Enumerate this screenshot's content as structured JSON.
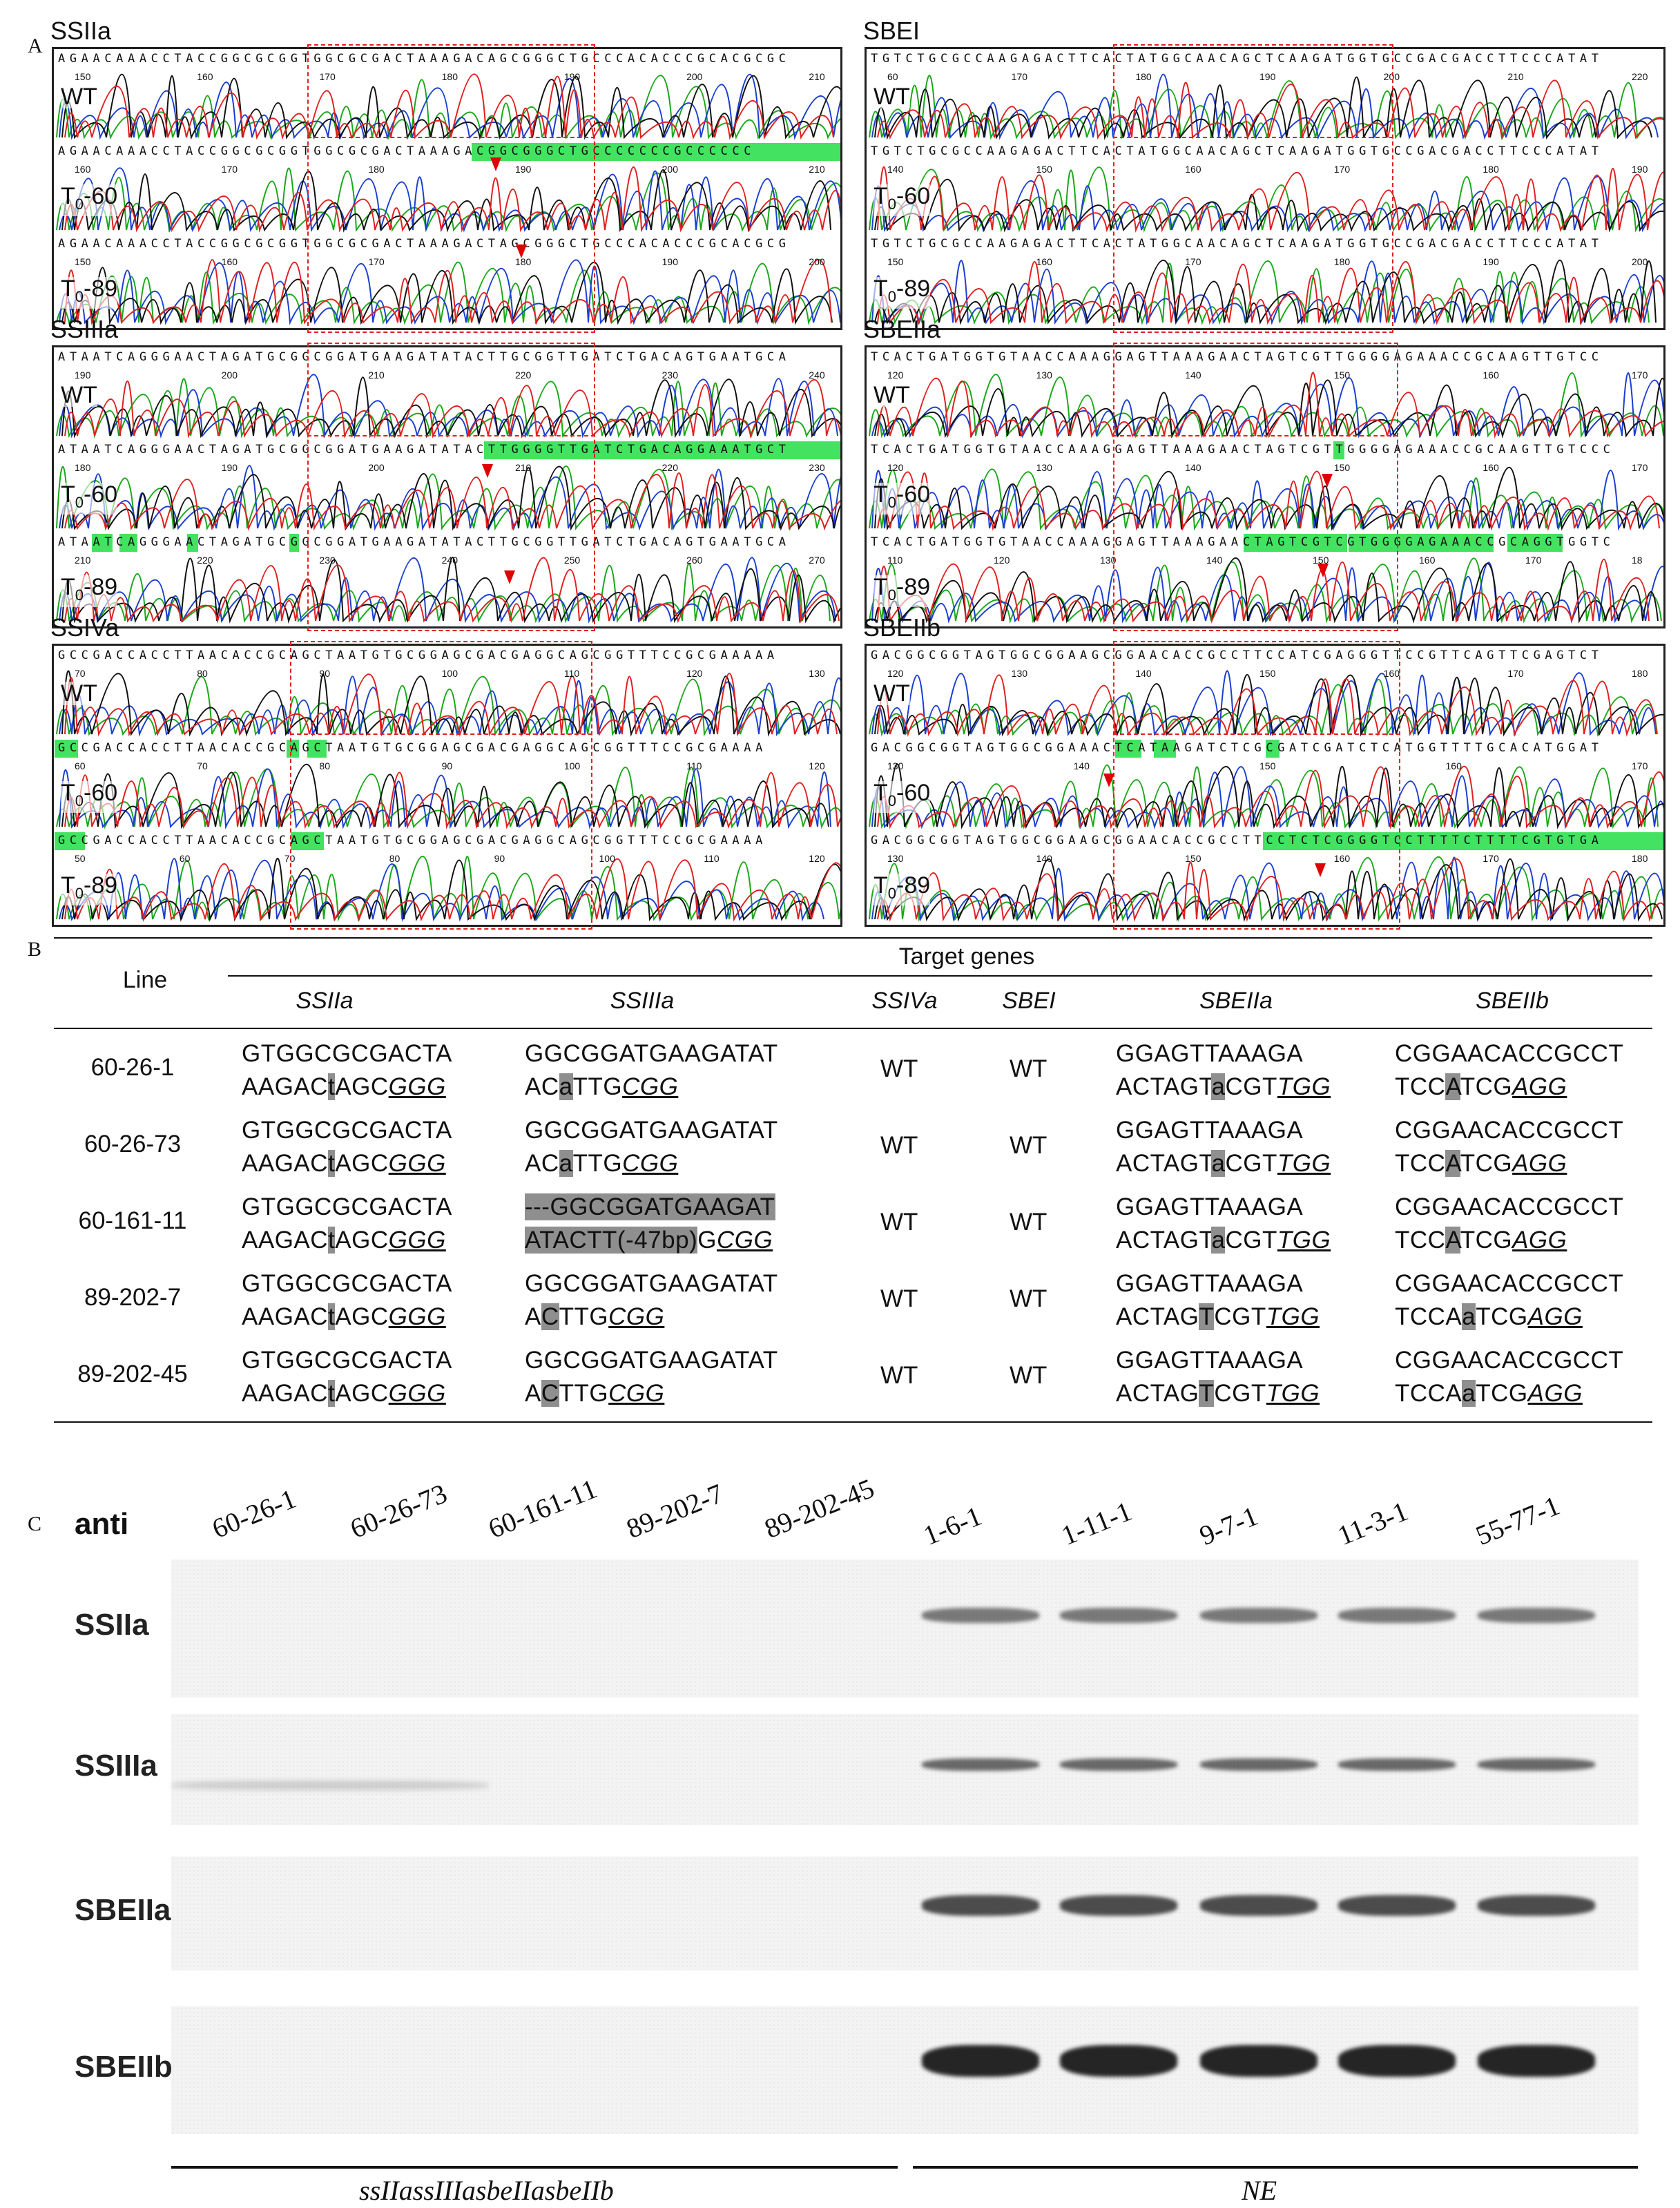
{
  "panel_labels": {
    "a": "A",
    "b": "B",
    "c": "C"
  },
  "panelA": {
    "track_labels": {
      "wt": "WT",
      "t60": "T0-60",
      "t89": "T0-89"
    },
    "genes": [
      {
        "name": "SSIIa",
        "rows": [
          {
            "seq": "AGAACAAACCTACCGGCGCGGTGGCGCGACTAAAGACAGCGGGCTGCCCACACCCGCACGCGC",
            "ticks": [
              "150",
              "160",
              "170",
              "180",
              "190",
              "200",
              "210"
            ]
          },
          {
            "seq": "AGAACAAACCTACCGGCGCGGTGGCGCGACTAAAGACGGCGGGCTGCCCCCCCGCCCCCC",
            "ticks": [
              "160",
              "170",
              "180",
              "190",
              "200",
              "210"
            ]
          },
          {
            "seq": "AGAACAAACCTACCGGCGCGGTGGCGCGACTAAAGACTAGCGGGCTGCCCACACCCGCACGCG",
            "ticks": [
              "150",
              "160",
              "170",
              "180",
              "190",
              "200"
            ]
          }
        ]
      },
      {
        "name": "SBEI",
        "rows": [
          {
            "seq": "TGTCTGCGCCAAGAGACTTCACTATGGCAACAGCTCAAGATGGTGCCGACGACCTTCCCATAT",
            "ticks": [
              "60",
              "170",
              "180",
              "190",
              "200",
              "210",
              "220"
            ]
          },
          {
            "seq": "TGTCTGCGCCAAGAGACTTCACTATGGCAACAGCTCAAGATGGTGCCGACGACCTTCCCATAT",
            "ticks": [
              "140",
              "150",
              "160",
              "170",
              "180",
              "190"
            ]
          },
          {
            "seq": "TGTCTGCGCCAAGAGACTTCACTATGGCAACAGCTCAAGATGGTGCCGACGACCTTCCCATAT",
            "ticks": [
              "150",
              "160",
              "170",
              "180",
              "190",
              "200"
            ]
          }
        ]
      },
      {
        "name": "SSIIIa",
        "rows": [
          {
            "seq": "ATAATCAGGGAACTAGATGCGGCGGATGAAGATATACTTGCGGTTGATCTGACAGTGAATGCA",
            "ticks": [
              "190",
              "200",
              "210",
              "220",
              "230",
              "240"
            ]
          },
          {
            "seq": "ATAATCAGGGAACTAGATGCGGCGGATGAAGATATACTTGGGGTTGATCTGACAGGAAATGCT",
            "ticks": [
              "180",
              "190",
              "200",
              "210",
              "220",
              "230"
            ]
          },
          {
            "seq": "ATAATCAGGGAACTAGATGCGGCGGATGAAGATATACTTGCGGTTGATCTGACAGTGAATGCA",
            "ticks": [
              "210",
              "220",
              "230",
              "240",
              "250",
              "260",
              "270"
            ]
          }
        ]
      },
      {
        "name": "SBEIIa",
        "rows": [
          {
            "seq": "TCACTGATGGTGTAACCAAAGGAGTTAAAGAACTAGTCGTTGGGGAGAAACCGCAAGTTGTCC",
            "ticks": [
              "120",
              "130",
              "140",
              "150",
              "160",
              "170"
            ]
          },
          {
            "seq": "TCACTGATGGTGTAACCAAAGGAGTTAAAGAACTAGTCGTTGGGGAGAAACCGCAAGTTGTCCC",
            "ticks": [
              "120",
              "130",
              "140",
              "150",
              "160",
              "170"
            ]
          },
          {
            "seq": "TCACTGATGGTGTAACCAAAGGAGTTAAAGAACTAGTCGTCGTGGGGAGAAACCGCAGGTGGTC",
            "ticks": [
              "110",
              "120",
              "130",
              "140",
              "150",
              "160",
              "170",
              "18"
            ]
          }
        ]
      },
      {
        "name": "SSIVa",
        "rows": [
          {
            "seq": "GCCGACCACCTTAACACCGCAGCTAATGTGCGGAGCGACGAGGCAGCGGTTTCCGCGAAAAA",
            "ticks": [
              "70",
              "80",
              "90",
              "100",
              "110",
              "120",
              "130"
            ]
          },
          {
            "seq": "GCCGACCACCTTAACACCGCAGCTAATGTGCGGAGCGACGAGGCAGCGGTTTCCGCGAAAA",
            "ticks": [
              "60",
              "70",
              "80",
              "90",
              "100",
              "110",
              "120"
            ]
          },
          {
            "seq": "GCCGACCACCTTAACACCGCAGCTAATGTGCGGAGCGACGAGGCAGCGGTTTCCGCGAAAA",
            "ticks": [
              "50",
              "60",
              "70",
              "80",
              "90",
              "100",
              "110",
              "120"
            ]
          }
        ]
      },
      {
        "name": "SBEIIb",
        "rows": [
          {
            "seq": "GACGGCGGTAGTGGCGGAAGCGGAACACCGCCTTCCATCGAGGGTTCCGTTCAGTTCGAGTCT",
            "ticks": [
              "120",
              "130",
              "140",
              "150",
              "160",
              "170",
              "180"
            ]
          },
          {
            "seq": "GACGGCGGTAGTGGCGGAAACTCATAAGATCTCGCGATCGATCTCATGGTTTTGCACATGGAT",
            "ticks": [
              "130",
              "140",
              "150",
              "160",
              "170"
            ]
          },
          {
            "seq": "GACGGCGGTAGTGGCGGAAGCGGAACACCGCCTTCCTCTCGGGGTCCTTTTCTTTTCGTGTGA",
            "ticks": [
              "130",
              "140",
              "150",
              "160",
              "170",
              "180"
            ]
          }
        ]
      }
    ]
  },
  "panelB": {
    "line_header": "Line",
    "target_header": "Target genes",
    "genes": [
      "SSIIa",
      "SSIIIa",
      "SSIVa",
      "SBEI",
      "SBEIIa",
      "SBEIIb"
    ],
    "wt": "WT",
    "rows": [
      {
        "line": "60-26-1",
        "ssiia": [
          "GTGGCGCGACTA",
          "AAGAC",
          "t",
          "AGC",
          "GGG"
        ],
        "ssiiia": [
          "GGCGGATGAAGATAT",
          "AC",
          "a",
          "TTG",
          "CGG"
        ],
        "sbeiia": [
          "GGAGTTAAAGA",
          "ACTAGT",
          "a",
          "CGT",
          "TGG"
        ],
        "sbeiib": [
          "CGGAACACCGCCT",
          "TCC",
          "A",
          "TCG",
          "AGG"
        ]
      },
      {
        "line": "60-26-73",
        "ssiia": [
          "GTGGCGCGACTA",
          "AAGAC",
          "t",
          "AGC",
          "GGG"
        ],
        "ssiiia": [
          "GGCGGATGAAGATAT",
          "AC",
          "a",
          "TTG",
          "CGG"
        ],
        "sbeiia": [
          "GGAGTTAAAGA",
          "ACTAGT",
          "a",
          "CGT",
          "TGG"
        ],
        "sbeiib": [
          "CGGAACACCGCCT",
          "TCC",
          "A",
          "TCG",
          "AGG"
        ]
      },
      {
        "line": "60-161-11",
        "ssiia": [
          "GTGGCGCGACTA",
          "AAGAC",
          "t",
          "AGC",
          "GGG"
        ],
        "ssiiia_del": [
          "---GGCGGATGAAGAT",
          "ATACTT(-47bp)",
          "G",
          "CGG"
        ],
        "sbeiia": [
          "GGAGTTAAAGA",
          "ACTAGT",
          "a",
          "CGT",
          "TGG"
        ],
        "sbeiib": [
          "CGGAACACCGCCT",
          "TCC",
          "A",
          "TCG",
          "AGG"
        ]
      },
      {
        "line": "89-202-7",
        "ssiia": [
          "GTGGCGCGACTA",
          "AAGAC",
          "t",
          "AGC",
          "GGG"
        ],
        "ssiiia": [
          "GGCGGATGAAGATAT",
          "A",
          "C",
          "TTG",
          "CGG"
        ],
        "sbeiia": [
          "GGAGTTAAAGA",
          "ACTAG",
          "T",
          "CGT",
          "TGG"
        ],
        "sbeiib": [
          "CGGAACACCGCCT",
          "TCCA",
          "a",
          "TCG",
          "AGG"
        ]
      },
      {
        "line": "89-202-45",
        "ssiia": [
          "GTGGCGCGACTA",
          "AAGAC",
          "t",
          "AGC",
          "GGG"
        ],
        "ssiiia": [
          "GGCGGATGAAGATAT",
          "A",
          "C",
          "TTG",
          "CGG"
        ],
        "sbeiia": [
          "GGAGTTAAAGA",
          "ACTAG",
          "T",
          "CGT",
          "TGG"
        ],
        "sbeiib": [
          "CGGAACACCGCCT",
          "TCCA",
          "a",
          "TCG",
          "AGG"
        ]
      }
    ]
  },
  "panelC": {
    "anti_label": "anti",
    "lanes": [
      "60-26-1",
      "60-26-73",
      "60-161-11",
      "89-202-7",
      "89-202-45",
      "1-6-1",
      "1-11-1",
      "9-7-1",
      "11-3-1",
      "55-77-1"
    ],
    "rows": [
      "SSIIa",
      "SSIIIa",
      "SBEIIa",
      "SBEIIb"
    ],
    "group_left": "ssIIassIIIasbeIIasbeIIb",
    "group_right": "NE"
  }
}
